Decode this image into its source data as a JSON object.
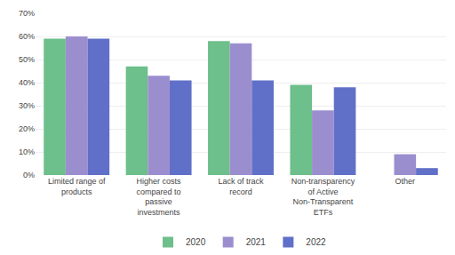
{
  "chart_data": {
    "type": "bar",
    "categories": [
      "Limited range of\nproducts",
      "Higher costs\ncompared to\npassive\ninvestments",
      "Lack of track\nrecord",
      "Non-transparency\nof Active\nNon-Transparent\nETFs",
      "Other"
    ],
    "series": [
      {
        "name": "2020",
        "color": "#6dbf8b",
        "values": [
          0.59,
          0.47,
          0.58,
          0.39,
          0.0
        ]
      },
      {
        "name": "2021",
        "color": "#9b8ecf",
        "values": [
          0.6,
          0.43,
          0.57,
          0.28,
          0.09
        ]
      },
      {
        "name": "2022",
        "color": "#6070c8",
        "values": [
          0.59,
          0.41,
          0.41,
          0.38,
          0.03
        ]
      }
    ],
    "ylim": [
      0,
      0.7
    ],
    "yticks": [
      {
        "value": 0.0,
        "label": "0%"
      },
      {
        "value": 0.1,
        "label": "10%"
      },
      {
        "value": 0.2,
        "label": "20%"
      },
      {
        "value": 0.3,
        "label": "30%"
      },
      {
        "value": 0.4,
        "label": "40%"
      },
      {
        "value": 0.5,
        "label": "50%"
      },
      {
        "value": 0.6,
        "label": "60%"
      },
      {
        "value": 0.7,
        "label": "70%"
      }
    ],
    "grid": true,
    "legend": "bottom"
  }
}
